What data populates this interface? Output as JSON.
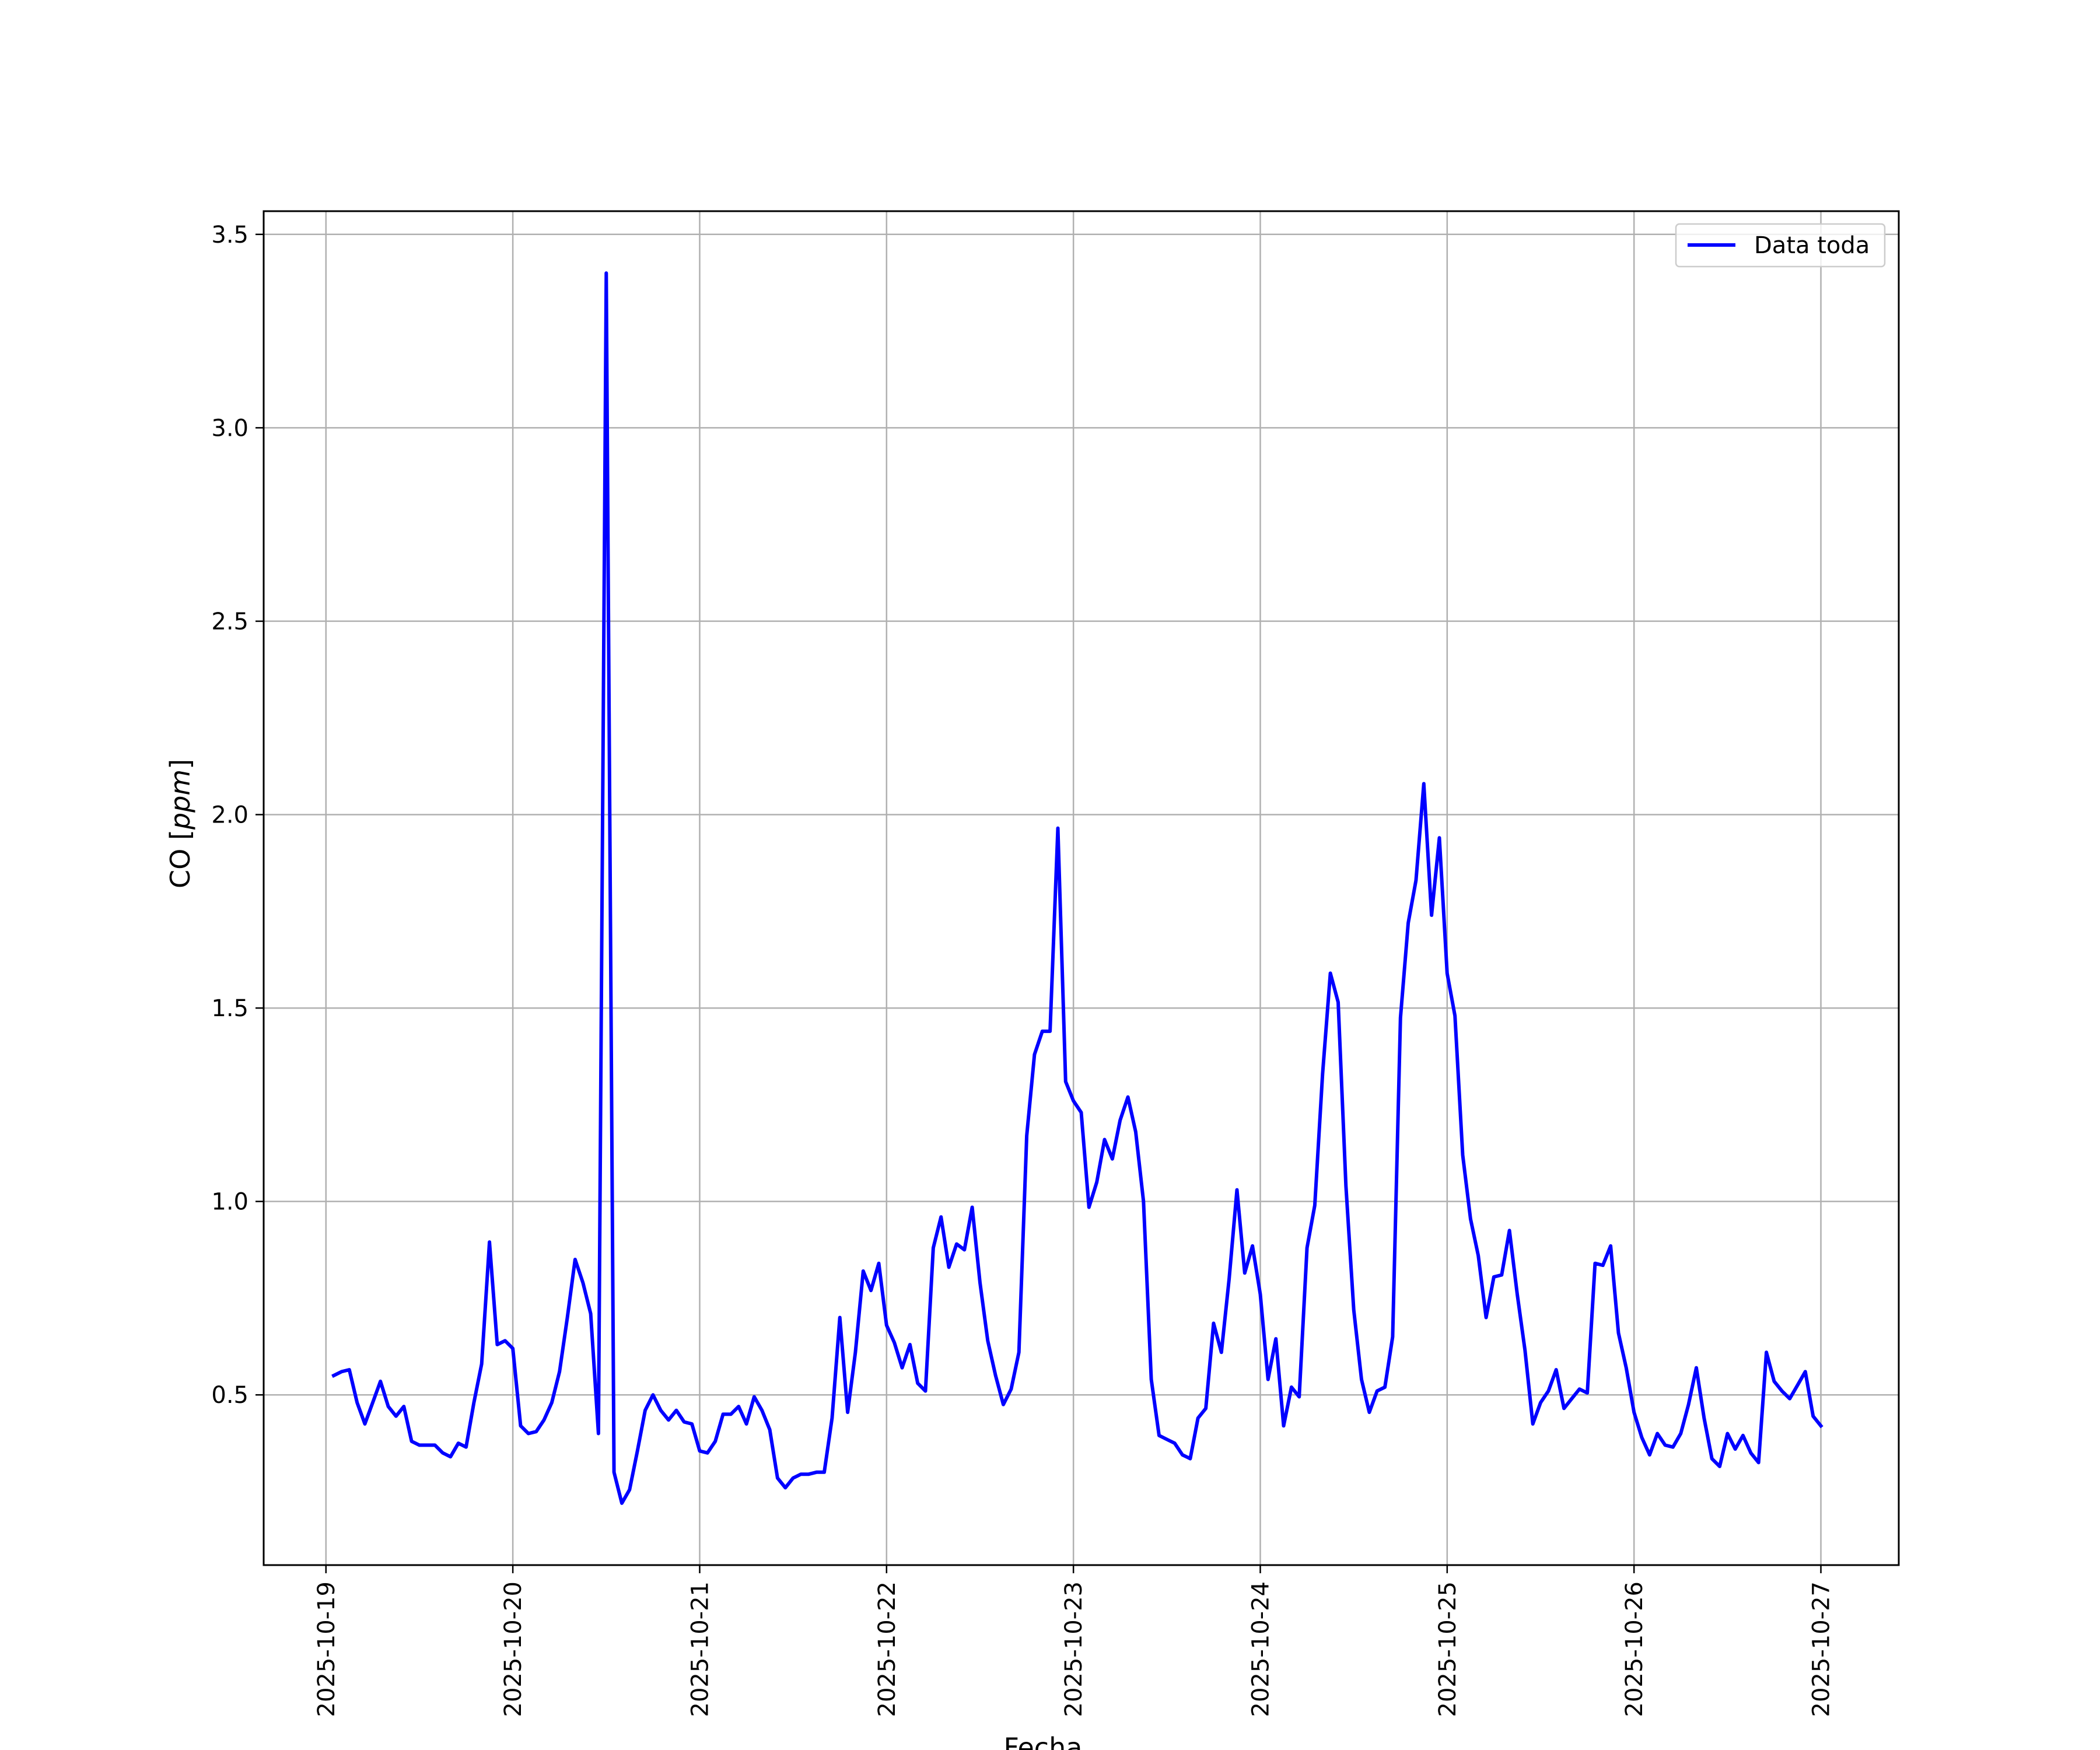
{
  "chart_data": {
    "type": "line",
    "xlabel": "Fecha",
    "ylabel": "CO [ppm]",
    "ylabel_parts": {
      "prefix": "CO [",
      "unit": "ppm",
      "suffix": "]"
    },
    "xlim": [
      "2025-10-18 16:00",
      "2025-10-27 10:00"
    ],
    "ylim": [
      0.06,
      3.56
    ],
    "x_ticks": [
      "2025-10-19",
      "2025-10-20",
      "2025-10-21",
      "2025-10-22",
      "2025-10-23",
      "2025-10-24",
      "2025-10-25",
      "2025-10-26",
      "2025-10-27"
    ],
    "y_ticks": [
      0.5,
      1.0,
      1.5,
      2.0,
      2.5,
      3.0,
      3.5
    ],
    "y_tick_labels": [
      "0.5",
      "1.0",
      "1.5",
      "2.0",
      "2.5",
      "3.0",
      "3.5"
    ],
    "grid": true,
    "legend_position": "top-right",
    "colors": {
      "series": "#0000ff",
      "grid": "#b0b0b0",
      "axes": "#000000"
    },
    "series": [
      {
        "name": "Data toda",
        "x": [
          "2025-10-19 01:00",
          "2025-10-19 02:00",
          "2025-10-19 03:00",
          "2025-10-19 04:00",
          "2025-10-19 05:00",
          "2025-10-19 06:00",
          "2025-10-19 07:00",
          "2025-10-19 08:00",
          "2025-10-19 09:00",
          "2025-10-19 10:00",
          "2025-10-19 11:00",
          "2025-10-19 12:00",
          "2025-10-19 14:00",
          "2025-10-19 15:00",
          "2025-10-19 16:00",
          "2025-10-19 17:00",
          "2025-10-19 18:00",
          "2025-10-19 19:00",
          "2025-10-19 20:00",
          "2025-10-19 21:00",
          "2025-10-19 22:00",
          "2025-10-19 23:00",
          "2025-10-20 00:00",
          "2025-10-20 01:00",
          "2025-10-20 02:00",
          "2025-10-20 03:00",
          "2025-10-20 04:00",
          "2025-10-20 05:00",
          "2025-10-20 06:00",
          "2025-10-20 07:00",
          "2025-10-20 08:00",
          "2025-10-20 09:00",
          "2025-10-20 10:00",
          "2025-10-20 11:00",
          "2025-10-20 12:00",
          "2025-10-20 13:00",
          "2025-10-20 14:00",
          "2025-10-20 15:00",
          "2025-10-20 16:00",
          "2025-10-20 17:00",
          "2025-10-20 18:00",
          "2025-10-20 19:00",
          "2025-10-20 20:00",
          "2025-10-20 21:00",
          "2025-10-20 22:00",
          "2025-10-20 23:00",
          "2025-10-21 00:00",
          "2025-10-21 01:00",
          "2025-10-21 02:00",
          "2025-10-21 03:00",
          "2025-10-21 04:00",
          "2025-10-21 05:00",
          "2025-10-21 06:00",
          "2025-10-21 07:00",
          "2025-10-21 08:00",
          "2025-10-21 09:00",
          "2025-10-21 10:00",
          "2025-10-21 11:00",
          "2025-10-21 12:00",
          "2025-10-21 13:00",
          "2025-10-21 14:00",
          "2025-10-21 15:00",
          "2025-10-21 16:00",
          "2025-10-21 17:00",
          "2025-10-21 18:00",
          "2025-10-21 19:00",
          "2025-10-21 20:00",
          "2025-10-21 21:00",
          "2025-10-21 22:00",
          "2025-10-21 23:00",
          "2025-10-22 00:00",
          "2025-10-22 01:00",
          "2025-10-22 02:00",
          "2025-10-22 03:00",
          "2025-10-22 04:00",
          "2025-10-22 05:00",
          "2025-10-22 06:00",
          "2025-10-22 07:00",
          "2025-10-22 08:00",
          "2025-10-22 09:00",
          "2025-10-22 10:00",
          "2025-10-22 11:00",
          "2025-10-22 12:00",
          "2025-10-22 13:00",
          "2025-10-22 14:00",
          "2025-10-22 15:00",
          "2025-10-22 16:00",
          "2025-10-22 17:00",
          "2025-10-22 18:00",
          "2025-10-22 19:00",
          "2025-10-22 20:00",
          "2025-10-22 21:00",
          "2025-10-22 22:00",
          "2025-10-22 23:00",
          "2025-10-23 00:00",
          "2025-10-23 01:00",
          "2025-10-23 02:00",
          "2025-10-23 03:00",
          "2025-10-23 04:00",
          "2025-10-23 05:00",
          "2025-10-23 06:00",
          "2025-10-23 07:00",
          "2025-10-23 08:00",
          "2025-10-23 09:00",
          "2025-10-23 10:00",
          "2025-10-23 11:00",
          "2025-10-23 12:00",
          "2025-10-23 13:00",
          "2025-10-23 14:00",
          "2025-10-23 15:00",
          "2025-10-23 16:00",
          "2025-10-23 17:00",
          "2025-10-23 18:00",
          "2025-10-23 19:00",
          "2025-10-23 20:00",
          "2025-10-23 21:00",
          "2025-10-23 22:00",
          "2025-10-23 23:00",
          "2025-10-24 00:00",
          "2025-10-24 01:00",
          "2025-10-24 02:00",
          "2025-10-24 03:00",
          "2025-10-24 04:00",
          "2025-10-24 05:00",
          "2025-10-24 06:00",
          "2025-10-24 07:00",
          "2025-10-24 08:00",
          "2025-10-24 09:00",
          "2025-10-24 10:00",
          "2025-10-24 11:00",
          "2025-10-24 12:00",
          "2025-10-24 13:00",
          "2025-10-24 14:00",
          "2025-10-24 15:00",
          "2025-10-24 16:00",
          "2025-10-24 17:00",
          "2025-10-24 18:00",
          "2025-10-24 19:00",
          "2025-10-24 20:00",
          "2025-10-24 21:00",
          "2025-10-24 22:00",
          "2025-10-24 23:00",
          "2025-10-25 00:00",
          "2025-10-25 01:00",
          "2025-10-25 02:00",
          "2025-10-25 03:00",
          "2025-10-25 04:00",
          "2025-10-25 05:00",
          "2025-10-25 06:00",
          "2025-10-25 07:00",
          "2025-10-25 08:00",
          "2025-10-25 09:00",
          "2025-10-25 10:00",
          "2025-10-25 11:00",
          "2025-10-25 12:00",
          "2025-10-25 13:00",
          "2025-10-25 14:00",
          "2025-10-25 15:00",
          "2025-10-25 16:00",
          "2025-10-25 17:00",
          "2025-10-25 18:00",
          "2025-10-25 19:00",
          "2025-10-25 20:00",
          "2025-10-25 21:00",
          "2025-10-25 22:00",
          "2025-10-25 23:00",
          "2025-10-26 00:00",
          "2025-10-26 01:00",
          "2025-10-26 02:00",
          "2025-10-26 03:00",
          "2025-10-26 04:00",
          "2025-10-26 05:00",
          "2025-10-26 06:00",
          "2025-10-26 07:00",
          "2025-10-26 08:00",
          "2025-10-26 09:00",
          "2025-10-26 10:00",
          "2025-10-26 11:00",
          "2025-10-26 12:00",
          "2025-10-26 13:00",
          "2025-10-26 14:00",
          "2025-10-26 15:00",
          "2025-10-26 16:00",
          "2025-10-26 17:00",
          "2025-10-26 18:00",
          "2025-10-26 19:00",
          "2025-10-26 20:00",
          "2025-10-26 21:00",
          "2025-10-26 22:00",
          "2025-10-26 23:00",
          "2025-10-27 00:00"
        ],
        "y": [
          0.55,
          0.56,
          0.565,
          0.48,
          0.425,
          0.48,
          0.535,
          0.47,
          0.445,
          0.47,
          0.38,
          0.37,
          0.37,
          0.35,
          0.34,
          0.375,
          0.365,
          0.48,
          0.58,
          0.895,
          0.63,
          0.64,
          0.62,
          0.42,
          0.4,
          0.405,
          0.435,
          0.48,
          0.56,
          0.7,
          0.85,
          0.79,
          0.71,
          0.4,
          3.4,
          0.3,
          0.22,
          0.255,
          0.355,
          0.46,
          0.5,
          0.46,
          0.435,
          0.46,
          0.43,
          0.425,
          0.355,
          0.35,
          0.38,
          0.45,
          0.45,
          0.47,
          0.425,
          0.495,
          0.46,
          0.41,
          0.285,
          0.26,
          0.285,
          0.295,
          0.295,
          0.3,
          0.3,
          0.44,
          0.7,
          0.455,
          0.61,
          0.82,
          0.77,
          0.84,
          0.68,
          0.635,
          0.57,
          0.63,
          0.53,
          0.51,
          0.88,
          0.96,
          0.83,
          0.89,
          0.875,
          0.985,
          0.79,
          0.64,
          0.55,
          0.475,
          0.515,
          0.61,
          1.17,
          1.38,
          1.44,
          1.44,
          1.965,
          1.31,
          1.26,
          1.23,
          0.985,
          1.05,
          1.16,
          1.11,
          1.21,
          1.27,
          1.18,
          1.0,
          0.54,
          0.395,
          0.385,
          0.375,
          0.345,
          0.335,
          0.44,
          0.465,
          0.685,
          0.61,
          0.8,
          1.03,
          0.815,
          0.885,
          0.76,
          0.54,
          0.645,
          0.42,
          0.52,
          0.495,
          0.88,
          0.99,
          1.33,
          1.59,
          1.515,
          1.04,
          0.72,
          0.54,
          0.455,
          0.51,
          0.52,
          0.65,
          1.475,
          1.72,
          1.83,
          2.08,
          1.74,
          1.94,
          1.59,
          1.48,
          1.12,
          0.955,
          0.86,
          0.7,
          0.805,
          0.81,
          0.925,
          0.76,
          0.615,
          0.425,
          0.48,
          0.51,
          0.565,
          0.465,
          0.49,
          0.515,
          0.505,
          0.84,
          0.835,
          0.885,
          0.66,
          0.57,
          0.455,
          0.39,
          0.345,
          0.4,
          0.37,
          0.365,
          0.4,
          0.475,
          0.57,
          0.44,
          0.335,
          0.315,
          0.4,
          0.36,
          0.395,
          0.35,
          0.325,
          0.61,
          0.535,
          0.51,
          0.49,
          0.525,
          0.56,
          0.445,
          0.42
        ]
      }
    ]
  }
}
